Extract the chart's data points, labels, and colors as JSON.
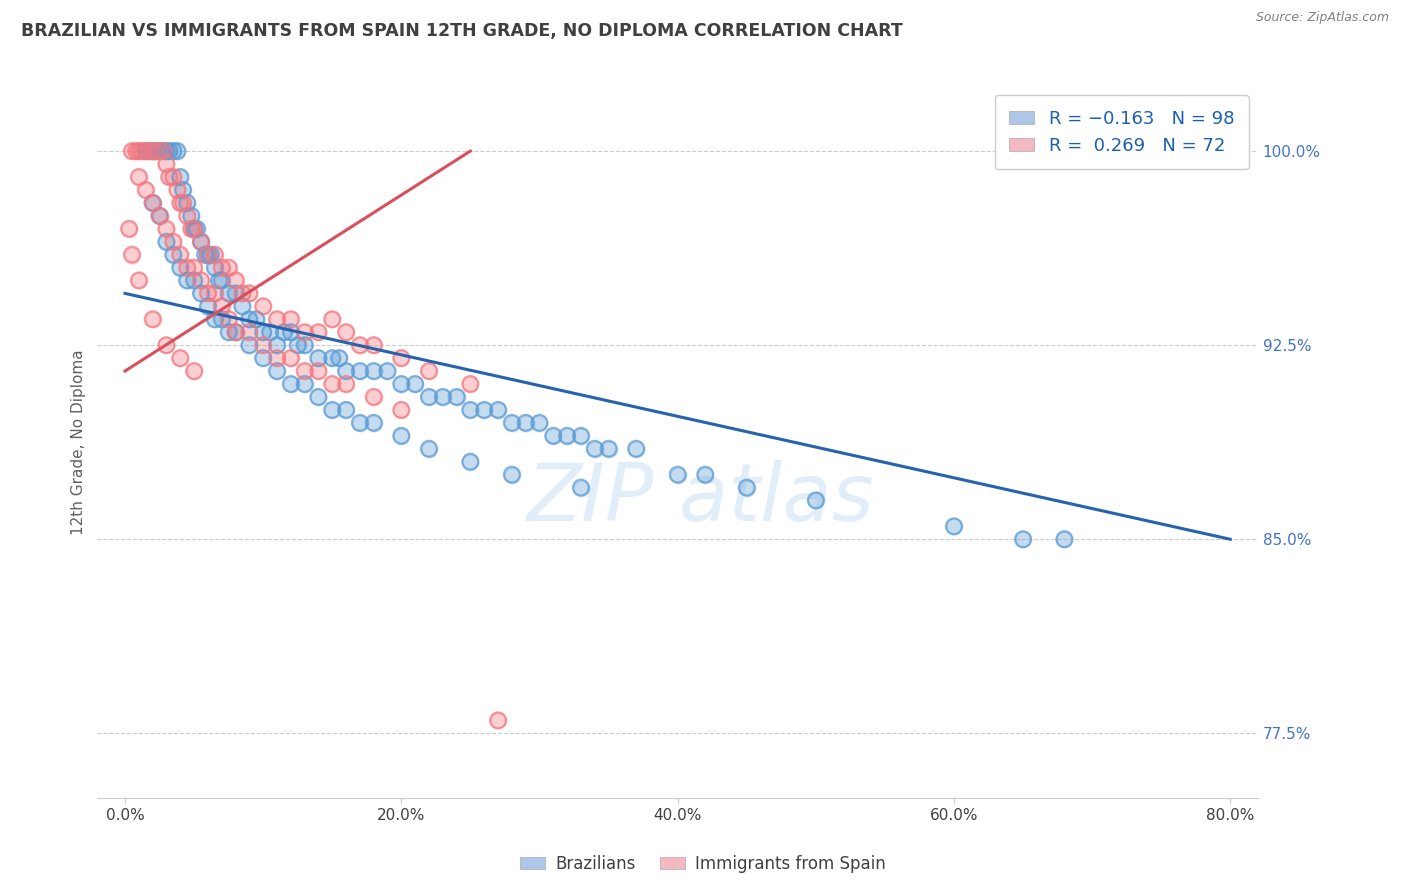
{
  "title": "BRAZILIAN VS IMMIGRANTS FROM SPAIN 12TH GRADE, NO DIPLOMA CORRELATION CHART",
  "source": "Source: ZipAtlas.com",
  "ylabel": "12th Grade, No Diploma",
  "x_tick_values": [
    0.0,
    20.0,
    40.0,
    60.0,
    80.0
  ],
  "y_tick_vals": [
    77.5,
    85.0,
    92.5,
    100.0
  ],
  "y_tick_labels": [
    "77.5%",
    "85.0%",
    "92.5%",
    "100.0%"
  ],
  "xlim": [
    -2,
    82
  ],
  "ylim": [
    75.0,
    102.5
  ],
  "blue_color": "#5b9bd5",
  "pink_color": "#f4777f",
  "blue_line_color": "#2563ae",
  "pink_line_color": "#d94f5c",
  "blue_legend_color": "#aec6e8",
  "pink_legend_color": "#f4b8c1",
  "grid_color": "#cccccc",
  "title_color": "#404040",
  "source_color": "#808080",
  "axis_label_color": "#606060",
  "right_tick_color": "#4472c4",
  "bottom_legend_labels": [
    "Brazilians",
    "Immigrants from Spain"
  ],
  "blue_line_x0": 0.0,
  "blue_line_y0": 94.5,
  "blue_line_x1": 80.0,
  "blue_line_y1": 85.0,
  "pink_line_x0": 0.0,
  "pink_line_y0": 91.5,
  "pink_line_x1": 25.0,
  "pink_line_y1": 100.0,
  "blue_scatter_x": [
    1.5,
    1.8,
    2.0,
    2.2,
    2.5,
    2.8,
    3.0,
    3.2,
    3.5,
    3.8,
    4.0,
    4.2,
    4.5,
    4.8,
    5.0,
    5.2,
    5.5,
    5.8,
    6.0,
    6.2,
    6.5,
    6.8,
    7.0,
    7.5,
    8.0,
    8.5,
    9.0,
    9.5,
    10.0,
    10.5,
    11.0,
    11.5,
    12.0,
    12.5,
    13.0,
    14.0,
    15.0,
    15.5,
    16.0,
    17.0,
    18.0,
    19.0,
    20.0,
    21.0,
    22.0,
    23.0,
    24.0,
    25.0,
    26.0,
    27.0,
    28.0,
    29.0,
    30.0,
    31.0,
    32.0,
    33.0,
    34.0,
    35.0,
    37.0,
    40.0,
    42.0,
    45.0,
    50.0,
    60.0,
    65.0,
    68.0,
    2.0,
    2.5,
    3.0,
    3.5,
    4.0,
    4.5,
    5.0,
    5.5,
    6.0,
    6.5,
    7.0,
    7.5,
    8.0,
    9.0,
    10.0,
    11.0,
    12.0,
    13.0,
    14.0,
    15.0,
    16.0,
    17.0,
    18.0,
    20.0,
    22.0,
    25.0,
    28.0,
    33.0
  ],
  "blue_scatter_y": [
    100.0,
    100.0,
    100.0,
    100.0,
    100.0,
    100.0,
    100.0,
    100.0,
    100.0,
    100.0,
    99.0,
    98.5,
    98.0,
    97.5,
    97.0,
    97.0,
    96.5,
    96.0,
    96.0,
    96.0,
    95.5,
    95.0,
    95.0,
    94.5,
    94.5,
    94.0,
    93.5,
    93.5,
    93.0,
    93.0,
    92.5,
    93.0,
    93.0,
    92.5,
    92.5,
    92.0,
    92.0,
    92.0,
    91.5,
    91.5,
    91.5,
    91.5,
    91.0,
    91.0,
    90.5,
    90.5,
    90.5,
    90.0,
    90.0,
    90.0,
    89.5,
    89.5,
    89.5,
    89.0,
    89.0,
    89.0,
    88.5,
    88.5,
    88.5,
    87.5,
    87.5,
    87.0,
    86.5,
    85.5,
    85.0,
    85.0,
    98.0,
    97.5,
    96.5,
    96.0,
    95.5,
    95.0,
    95.0,
    94.5,
    94.0,
    93.5,
    93.5,
    93.0,
    93.0,
    92.5,
    92.0,
    91.5,
    91.0,
    91.0,
    90.5,
    90.0,
    90.0,
    89.5,
    89.5,
    89.0,
    88.5,
    88.0,
    87.5,
    87.0
  ],
  "pink_scatter_x": [
    0.5,
    0.8,
    1.0,
    1.2,
    1.5,
    1.8,
    2.0,
    2.2,
    2.5,
    2.8,
    3.0,
    3.2,
    3.5,
    3.8,
    4.0,
    4.2,
    4.5,
    4.8,
    5.0,
    5.5,
    6.0,
    6.5,
    7.0,
    7.5,
    8.0,
    8.5,
    9.0,
    10.0,
    11.0,
    12.0,
    13.0,
    14.0,
    15.0,
    16.0,
    17.0,
    18.0,
    20.0,
    22.0,
    25.0,
    1.0,
    1.5,
    2.0,
    2.5,
    3.0,
    3.5,
    4.0,
    4.5,
    5.0,
    5.5,
    6.0,
    6.5,
    7.0,
    7.5,
    8.0,
    9.0,
    10.0,
    11.0,
    12.0,
    13.0,
    14.0,
    15.0,
    16.0,
    18.0,
    20.0,
    0.3,
    0.5,
    1.0,
    2.0,
    3.0,
    4.0,
    5.0,
    27.0
  ],
  "pink_scatter_y": [
    100.0,
    100.0,
    100.0,
    100.0,
    100.0,
    100.0,
    100.0,
    100.0,
    100.0,
    100.0,
    99.5,
    99.0,
    99.0,
    98.5,
    98.0,
    98.0,
    97.5,
    97.0,
    97.0,
    96.5,
    96.0,
    96.0,
    95.5,
    95.5,
    95.0,
    94.5,
    94.5,
    94.0,
    93.5,
    93.5,
    93.0,
    93.0,
    93.5,
    93.0,
    92.5,
    92.5,
    92.0,
    91.5,
    91.0,
    99.0,
    98.5,
    98.0,
    97.5,
    97.0,
    96.5,
    96.0,
    95.5,
    95.5,
    95.0,
    94.5,
    94.5,
    94.0,
    93.5,
    93.0,
    93.0,
    92.5,
    92.0,
    92.0,
    91.5,
    91.5,
    91.0,
    91.0,
    90.5,
    90.0,
    97.0,
    96.0,
    95.0,
    93.5,
    92.5,
    92.0,
    91.5,
    78.0
  ]
}
